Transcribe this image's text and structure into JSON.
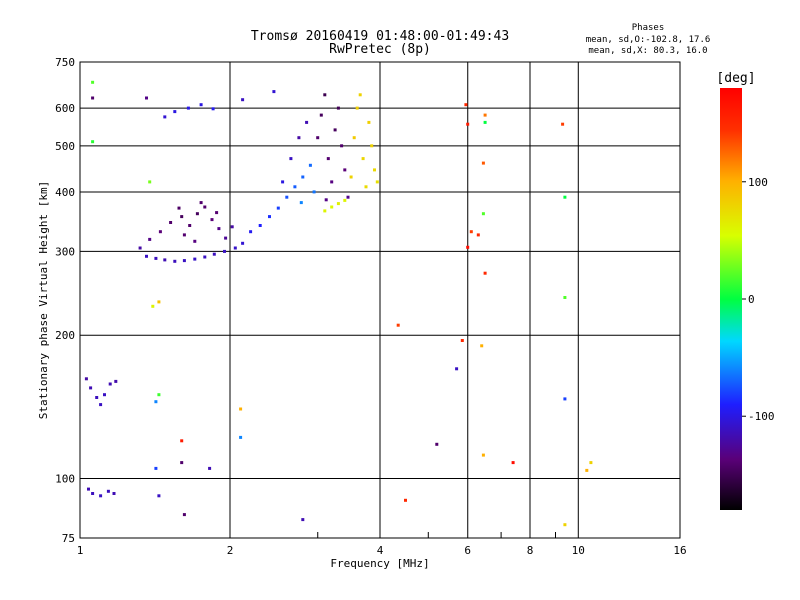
{
  "chart_data": {
    "type": "scatter",
    "title": "Tromsø 20160419 01:48:00-01:49:43",
    "subtitle": "RwPretec (8p)",
    "xlabel": "Frequency [MHz]",
    "ylabel": "Stationary phase Virtual Height [km]",
    "x_scale": "log",
    "y_scale": "log",
    "xlim": [
      1,
      16
    ],
    "ylim": [
      75,
      750
    ],
    "x_ticks": [
      1,
      2,
      4,
      6,
      8,
      10,
      16
    ],
    "x_tick_labels": [
      "1",
      "2",
      "4",
      "6",
      "8",
      "10",
      "16"
    ],
    "x_minor_ticks": [
      3,
      5,
      7,
      9
    ],
    "y_ticks": [
      75,
      100,
      200,
      300,
      400,
      500,
      600,
      750
    ],
    "y_tick_labels": [
      "75",
      "100",
      "200",
      "300",
      "400",
      "500",
      "600",
      "750"
    ],
    "grid": true,
    "info": {
      "heading": "Phases",
      "line1": "mean, sd,O:-102.8, 17.6",
      "line2": "mean, sd,X:  80.3, 16.0"
    },
    "colorbar": {
      "unit": "[deg]",
      "range": [
        -180,
        180
      ],
      "tick_values": [
        100,
        0,
        -100
      ],
      "tick_labels": [
        "100",
        "0",
        "-100"
      ]
    },
    "series": [
      {
        "values": [
          {
            "x": 1.36,
            "y": 293,
            "c": -110
          },
          {
            "x": 1.42,
            "y": 290,
            "c": -112
          },
          {
            "x": 1.48,
            "y": 288,
            "c": -115
          },
          {
            "x": 1.55,
            "y": 286,
            "c": -112
          },
          {
            "x": 1.62,
            "y": 287,
            "c": -110
          },
          {
            "x": 1.7,
            "y": 289,
            "c": -108
          },
          {
            "x": 1.78,
            "y": 292,
            "c": -110
          },
          {
            "x": 1.86,
            "y": 296,
            "c": -112
          },
          {
            "x": 1.95,
            "y": 300,
            "c": -110
          },
          {
            "x": 2.05,
            "y": 305,
            "c": -108
          },
          {
            "x": 2.12,
            "y": 312,
            "c": -105
          },
          {
            "x": 1.32,
            "y": 305,
            "c": -120
          },
          {
            "x": 1.38,
            "y": 318,
            "c": -130
          },
          {
            "x": 1.45,
            "y": 330,
            "c": -135
          },
          {
            "x": 1.52,
            "y": 345,
            "c": -140
          },
          {
            "x": 1.6,
            "y": 355,
            "c": -145
          },
          {
            "x": 1.66,
            "y": 340,
            "c": -140
          },
          {
            "x": 1.72,
            "y": 360,
            "c": -145
          },
          {
            "x": 1.78,
            "y": 372,
            "c": -140
          },
          {
            "x": 1.84,
            "y": 350,
            "c": -135
          },
          {
            "x": 1.9,
            "y": 335,
            "c": -130
          },
          {
            "x": 1.96,
            "y": 320,
            "c": -125
          },
          {
            "x": 2.02,
            "y": 338,
            "c": -120
          },
          {
            "x": 1.62,
            "y": 325,
            "c": -138
          },
          {
            "x": 1.7,
            "y": 315,
            "c": -132
          },
          {
            "x": 1.58,
            "y": 370,
            "c": -142
          },
          {
            "x": 1.75,
            "y": 380,
            "c": -140
          },
          {
            "x": 1.88,
            "y": 362,
            "c": -138
          },
          {
            "x": 1.48,
            "y": 575,
            "c": -105
          },
          {
            "x": 1.55,
            "y": 590,
            "c": -100
          },
          {
            "x": 1.65,
            "y": 600,
            "c": -98
          },
          {
            "x": 1.75,
            "y": 610,
            "c": -100
          },
          {
            "x": 1.85,
            "y": 598,
            "c": -95
          },
          {
            "x": 2.12,
            "y": 625,
            "c": -110
          },
          {
            "x": 2.45,
            "y": 650,
            "c": -105
          },
          {
            "x": 2.2,
            "y": 330,
            "c": -95
          },
          {
            "x": 2.3,
            "y": 340,
            "c": -90
          },
          {
            "x": 2.4,
            "y": 355,
            "c": -85
          },
          {
            "x": 2.5,
            "y": 370,
            "c": -80
          },
          {
            "x": 2.6,
            "y": 390,
            "c": -75
          },
          {
            "x": 2.7,
            "y": 410,
            "c": -72
          },
          {
            "x": 2.8,
            "y": 430,
            "c": -70
          },
          {
            "x": 2.9,
            "y": 455,
            "c": -68
          },
          {
            "x": 2.55,
            "y": 420,
            "c": -100
          },
          {
            "x": 2.65,
            "y": 470,
            "c": -110
          },
          {
            "x": 2.75,
            "y": 520,
            "c": -120
          },
          {
            "x": 2.85,
            "y": 560,
            "c": -115
          },
          {
            "x": 2.78,
            "y": 380,
            "c": -60
          },
          {
            "x": 2.95,
            "y": 400,
            "c": -65
          },
          {
            "x": 3.0,
            "y": 520,
            "c": -140
          },
          {
            "x": 3.05,
            "y": 580,
            "c": -145
          },
          {
            "x": 3.1,
            "y": 640,
            "c": -150
          },
          {
            "x": 3.15,
            "y": 470,
            "c": -138
          },
          {
            "x": 3.2,
            "y": 420,
            "c": -132
          },
          {
            "x": 3.25,
            "y": 540,
            "c": -145
          },
          {
            "x": 3.3,
            "y": 600,
            "c": -148
          },
          {
            "x": 3.35,
            "y": 500,
            "c": -140
          },
          {
            "x": 3.4,
            "y": 445,
            "c": -135
          },
          {
            "x": 3.12,
            "y": 385,
            "c": -130
          },
          {
            "x": 3.45,
            "y": 390,
            "c": -128
          },
          {
            "x": 3.1,
            "y": 365,
            "c": 60
          },
          {
            "x": 3.2,
            "y": 372,
            "c": 58
          },
          {
            "x": 3.3,
            "y": 378,
            "c": 62
          },
          {
            "x": 3.4,
            "y": 384,
            "c": 60
          },
          {
            "x": 3.5,
            "y": 430,
            "c": 80
          },
          {
            "x": 3.55,
            "y": 520,
            "c": 85
          },
          {
            "x": 3.6,
            "y": 600,
            "c": 82
          },
          {
            "x": 3.65,
            "y": 640,
            "c": 80
          },
          {
            "x": 3.7,
            "y": 470,
            "c": 78
          },
          {
            "x": 3.75,
            "y": 410,
            "c": 75
          },
          {
            "x": 3.8,
            "y": 560,
            "c": 82
          },
          {
            "x": 3.85,
            "y": 500,
            "c": 80
          },
          {
            "x": 3.9,
            "y": 445,
            "c": 76
          },
          {
            "x": 3.95,
            "y": 420,
            "c": 72
          },
          {
            "x": 1.05,
            "y": 155,
            "c": -115
          },
          {
            "x": 1.08,
            "y": 148,
            "c": -112
          },
          {
            "x": 1.12,
            "y": 150,
            "c": -110
          },
          {
            "x": 1.15,
            "y": 158,
            "c": -115
          },
          {
            "x": 1.18,
            "y": 160,
            "c": -118
          },
          {
            "x": 1.1,
            "y": 143,
            "c": -110
          },
          {
            "x": 1.03,
            "y": 162,
            "c": -120
          },
          {
            "x": 1.04,
            "y": 95,
            "c": -115
          },
          {
            "x": 1.06,
            "y": 93,
            "c": -112
          },
          {
            "x": 1.1,
            "y": 92,
            "c": -110
          },
          {
            "x": 1.14,
            "y": 94,
            "c": -112
          },
          {
            "x": 1.17,
            "y": 93,
            "c": -115
          },
          {
            "x": 1.06,
            "y": 680,
            "c": 20
          },
          {
            "x": 1.06,
            "y": 630,
            "c": -140
          },
          {
            "x": 1.06,
            "y": 510,
            "c": 10
          },
          {
            "x": 1.36,
            "y": 630,
            "c": -130
          },
          {
            "x": 1.38,
            "y": 420,
            "c": 30
          },
          {
            "x": 1.4,
            "y": 230,
            "c": 60
          },
          {
            "x": 1.44,
            "y": 235,
            "c": 90
          },
          {
            "x": 1.42,
            "y": 145,
            "c": -60
          },
          {
            "x": 1.44,
            "y": 150,
            "c": 15
          },
          {
            "x": 1.42,
            "y": 105,
            "c": -80
          },
          {
            "x": 1.44,
            "y": 92,
            "c": -110
          },
          {
            "x": 1.6,
            "y": 120,
            "c": 160
          },
          {
            "x": 1.6,
            "y": 108,
            "c": -140
          },
          {
            "x": 1.62,
            "y": 84,
            "c": -140
          },
          {
            "x": 1.82,
            "y": 105,
            "c": -115
          },
          {
            "x": 2.1,
            "y": 140,
            "c": 100
          },
          {
            "x": 2.1,
            "y": 122,
            "c": -60
          },
          {
            "x": 2.8,
            "y": 82,
            "c": -115
          },
          {
            "x": 4.35,
            "y": 210,
            "c": 140
          },
          {
            "x": 4.5,
            "y": 90,
            "c": 150
          },
          {
            "x": 5.2,
            "y": 118,
            "c": -140
          },
          {
            "x": 5.7,
            "y": 170,
            "c": -110
          },
          {
            "x": 5.85,
            "y": 195,
            "c": 150
          },
          {
            "x": 5.95,
            "y": 610,
            "c": 150
          },
          {
            "x": 6.0,
            "y": 555,
            "c": 160
          },
          {
            "x": 6.0,
            "y": 306,
            "c": 170
          },
          {
            "x": 6.1,
            "y": 330,
            "c": 140
          },
          {
            "x": 6.3,
            "y": 325,
            "c": 150
          },
          {
            "x": 6.5,
            "y": 580,
            "c": 120
          },
          {
            "x": 6.5,
            "y": 560,
            "c": 0
          },
          {
            "x": 6.45,
            "y": 460,
            "c": 130
          },
          {
            "x": 6.45,
            "y": 360,
            "c": 20
          },
          {
            "x": 6.5,
            "y": 270,
            "c": 150
          },
          {
            "x": 6.4,
            "y": 190,
            "c": 100
          },
          {
            "x": 6.45,
            "y": 112,
            "c": 100
          },
          {
            "x": 7.4,
            "y": 108,
            "c": 170
          },
          {
            "x": 9.3,
            "y": 555,
            "c": 140
          },
          {
            "x": 9.4,
            "y": 390,
            "c": 0
          },
          {
            "x": 9.4,
            "y": 240,
            "c": 20
          },
          {
            "x": 9.4,
            "y": 147,
            "c": -80
          },
          {
            "x": 9.4,
            "y": 80,
            "c": 80
          },
          {
            "x": 10.4,
            "y": 104,
            "c": 100
          },
          {
            "x": 10.6,
            "y": 108,
            "c": 80
          }
        ]
      }
    ]
  }
}
